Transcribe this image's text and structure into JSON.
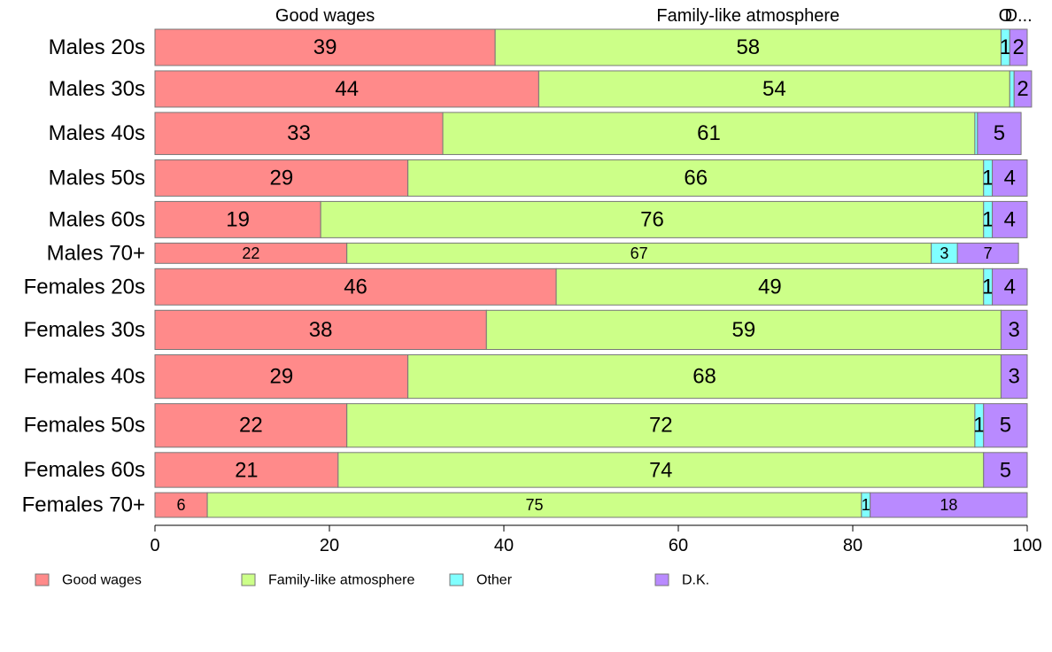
{
  "chart_data": {
    "type": "bar",
    "orientation": "horizontal",
    "stacked": true,
    "categories": [
      "Males 20s",
      "Males 30s",
      "Males 40s",
      "Males 50s",
      "Males 60s",
      "Males 70+",
      "Females 20s",
      "Females 30s",
      "Females 40s",
      "Females 50s",
      "Females 60s",
      "Females 70+"
    ],
    "row_weights": [
      1.25,
      1.25,
      1.45,
      1.25,
      1.25,
      0.7,
      1.25,
      1.35,
      1.5,
      1.5,
      1.2,
      0.85
    ],
    "series": [
      {
        "name": "Good wages",
        "color": "#FF8A8A",
        "values": [
          39,
          44,
          33,
          29,
          19,
          22,
          46,
          38,
          29,
          22,
          21,
          6
        ]
      },
      {
        "name": "Family-like atmosphere",
        "color": "#CCFF88",
        "values": [
          58,
          54,
          61,
          66,
          76,
          67,
          49,
          59,
          68,
          72,
          74,
          75
        ]
      },
      {
        "name": "Other",
        "color": "#80FFFF",
        "values": [
          1,
          0.5,
          0.3,
          1,
          1,
          3,
          1,
          0,
          0,
          1,
          0,
          1
        ]
      },
      {
        "name": "D.K.",
        "color": "#B98AFF",
        "values": [
          2,
          2,
          5,
          4,
          4,
          7,
          4,
          3,
          3,
          5,
          5,
          18
        ]
      }
    ],
    "data_labels": [
      [
        "39",
        "58",
        "1",
        "2"
      ],
      [
        "44",
        "54",
        "",
        "2"
      ],
      [
        "33",
        "61",
        "",
        "5"
      ],
      [
        "29",
        "66",
        "1",
        "4"
      ],
      [
        "19",
        "76",
        "1",
        "4"
      ],
      [
        "22",
        "67",
        "3",
        "7"
      ],
      [
        "46",
        "49",
        "1",
        "4"
      ],
      [
        "38",
        "59",
        "",
        "3"
      ],
      [
        "29",
        "68",
        "",
        "3"
      ],
      [
        "22",
        "72",
        "1",
        "5"
      ],
      [
        "21",
        "74",
        "",
        "5"
      ],
      [
        "6",
        "75",
        "1",
        "18"
      ]
    ],
    "xlim": [
      0,
      100
    ],
    "xticks": [
      "0",
      "20",
      "40",
      "60",
      "80",
      "100"
    ],
    "top_labels": [
      "Good wages",
      "Family-like atmosphere",
      "O",
      "D..."
    ],
    "legend": {
      "position": "bottom",
      "items": [
        "Good wages",
        "Family-like atmosphere",
        "Other",
        "D.K."
      ]
    },
    "title": "",
    "xlabel": "",
    "ylabel": "",
    "grid": false
  }
}
